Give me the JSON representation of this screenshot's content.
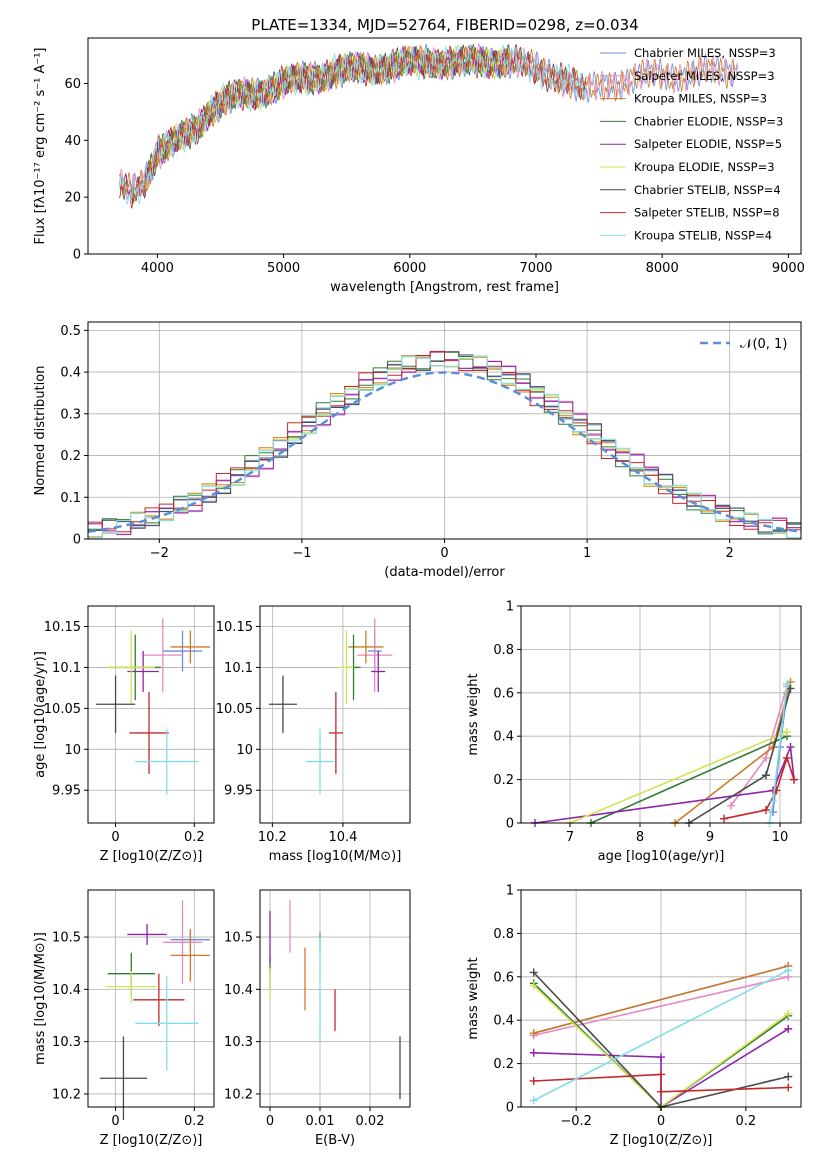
{
  "title": "PLATE=1334, MJD=52764, FIBERID=0298, z=0.034",
  "colors": [
    "#6b8ed6",
    "#e68ac0",
    "#cc7a29",
    "#2e7d32",
    "#8e24aa",
    "#d4e157",
    "#4a4a4a",
    "#c62828",
    "#80deea"
  ],
  "chart_data": [
    {
      "id": "spectrum",
      "type": "line",
      "xlabel": "wavelength [Angstrom, rest frame]",
      "ylabel": "Flux [fλ10⁻¹⁷ erg cm⁻² s⁻¹ A⁻¹]",
      "xlim": [
        3450,
        9100
      ],
      "ylim": [
        0,
        76
      ],
      "xticks": [
        4000,
        5000,
        6000,
        7000,
        8000,
        9000
      ],
      "yticks": [
        0,
        20,
        40,
        60
      ],
      "continuum": {
        "x": [
          3700,
          3800,
          3900,
          4000,
          4100,
          4200,
          4300,
          4400,
          4500,
          4600,
          4800,
          5000,
          5200,
          5400,
          5600,
          5800,
          6000,
          6200,
          6400,
          6600,
          6800,
          7000,
          7200,
          7400,
          7600,
          7800,
          8000,
          8200,
          8400,
          8600
        ],
        "y": [
          24,
          22,
          26,
          36,
          38,
          41,
          44,
          50,
          53,
          55,
          57,
          60,
          62,
          64,
          65,
          66,
          67,
          68,
          67,
          68,
          68,
          65,
          62,
          57,
          60,
          62,
          63,
          63,
          64,
          65
        ]
      },
      "series_labels": [
        "Chabrier MILES, N_SSP=3",
        "Salpeter MILES, N_SSP=3",
        "Kroupa MILES, N_SSP=3",
        "Chabrier ELODIE, N_SSP=3",
        "Salpeter ELODIE, N_SSP=5",
        "Kroupa ELODIE, N_SSP=3",
        "Chabrier STELIB, N_SSP=4",
        "Salpeter STELIB, N_SSP=8",
        "Kroupa STELIB, N_SSP=4"
      ],
      "series_range": [
        [
          3700,
          8600
        ],
        [
          3700,
          8600
        ],
        [
          3700,
          8600
        ],
        [
          3900,
          6800
        ],
        [
          3900,
          6800
        ],
        [
          3900,
          6800
        ],
        [
          3700,
          7400
        ],
        [
          3700,
          7400
        ],
        [
          3700,
          7400
        ]
      ]
    },
    {
      "id": "residuals",
      "type": "line",
      "xlabel": "(data-model)/error",
      "ylabel": "Normed distribution",
      "xlim": [
        -2.5,
        2.5
      ],
      "ylim": [
        0,
        0.52
      ],
      "xticks": [
        -2,
        -1,
        0,
        1,
        2
      ],
      "yticks": [
        0.0,
        0.1,
        0.2,
        0.3,
        0.4,
        0.5
      ],
      "legend": "𝒩(0, 1)",
      "legend_position": "top-right",
      "bin_width": 0.1,
      "bins_start": -2.5,
      "series_offsets": [
        0.02,
        0.05,
        -0.02,
        -0.03,
        0.04,
        0.0,
        0.03,
        -0.04,
        0.01
      ]
    },
    {
      "id": "age-vs-Z",
      "type": "scatter",
      "xlabel": "Z [log10(Z/Z⊙)]",
      "ylabel": "age  [log10(age/yr)]",
      "xlim": [
        -0.07,
        0.25
      ],
      "ylim": [
        9.91,
        10.175
      ],
      "xticks": [
        0.0,
        0.2
      ],
      "yticks": [
        9.95,
        10.0,
        10.05,
        10.1,
        10.15
      ],
      "points": [
        {
          "x": 0.17,
          "y": 10.12,
          "dx": 0.05,
          "dy": 0.025
        },
        {
          "x": 0.12,
          "y": 10.115,
          "dx": 0.05,
          "dy": 0.045
        },
        {
          "x": 0.19,
          "y": 10.125,
          "dx": 0.05,
          "dy": 0.02
        },
        {
          "x": 0.05,
          "y": 10.1,
          "dx": 0.065,
          "dy": 0.04
        },
        {
          "x": 0.07,
          "y": 10.095,
          "dx": 0.04,
          "dy": 0.025
        },
        {
          "x": 0.04,
          "y": 10.1,
          "dx": 0.06,
          "dy": 0.045
        },
        {
          "x": 0.0,
          "y": 10.055,
          "dx": 0.05,
          "dy": 0.035
        },
        {
          "x": 0.085,
          "y": 10.02,
          "dx": 0.05,
          "dy": 0.05
        },
        {
          "x": 0.13,
          "y": 9.985,
          "dx": 0.08,
          "dy": 0.04
        }
      ]
    },
    {
      "id": "age-vs-mass",
      "type": "scatter",
      "xlabel": "mass [log10(M/M⊙)]",
      "ylabel": "",
      "xlim": [
        10.165,
        10.59
      ],
      "ylim": [
        9.91,
        10.175
      ],
      "xticks": [
        10.2,
        10.4
      ],
      "yticks": [
        9.95,
        10.0,
        10.05,
        10.1,
        10.15
      ],
      "points": [
        {
          "x": 10.49,
          "y": 10.12,
          "dx": 0.02,
          "dy": 0.025
        },
        {
          "x": 10.49,
          "y": 10.115,
          "dx": 0.05,
          "dy": 0.045
        },
        {
          "x": 10.465,
          "y": 10.125,
          "dx": 0.05,
          "dy": 0.02
        },
        {
          "x": 10.43,
          "y": 10.1,
          "dx": 0.02,
          "dy": 0.04
        },
        {
          "x": 10.5,
          "y": 10.095,
          "dx": 0.02,
          "dy": 0.025
        },
        {
          "x": 10.41,
          "y": 10.1,
          "dx": 0.02,
          "dy": 0.045
        },
        {
          "x": 10.23,
          "y": 10.055,
          "dx": 0.04,
          "dy": 0.035
        },
        {
          "x": 10.38,
          "y": 10.02,
          "dx": 0.02,
          "dy": 0.05
        },
        {
          "x": 10.335,
          "y": 9.985,
          "dx": 0.04,
          "dy": 0.04
        }
      ]
    },
    {
      "id": "mass-weight-vs-age",
      "type": "line",
      "xlabel": "age  [log10(age/yr)]",
      "ylabel": "mass weight",
      "xlim": [
        6.3,
        10.3
      ],
      "ylim": [
        0.0,
        1.0
      ],
      "xticks": [
        7,
        8,
        9,
        10
      ],
      "yticks": [
        0.0,
        0.2,
        0.4,
        0.6,
        0.8,
        1.0
      ],
      "series": [
        {
          "x": [
            9.9,
            10.0,
            10.1
          ],
          "y": [
            0.05,
            0.35,
            0.6
          ]
        },
        {
          "x": [
            9.3,
            9.8,
            10.1
          ],
          "y": [
            0.08,
            0.3,
            0.63
          ]
        },
        {
          "x": [
            8.5,
            9.9,
            10.15
          ],
          "y": [
            0.0,
            0.35,
            0.65
          ]
        },
        {
          "x": [
            7.3,
            10.1
          ],
          "y": [
            0.0,
            0.4
          ]
        },
        {
          "x": [
            6.5,
            9.9,
            10.15,
            10.2
          ],
          "y": [
            0.0,
            0.15,
            0.35,
            0.2
          ]
        },
        {
          "x": [
            7.0,
            10.1
          ],
          "y": [
            0.0,
            0.42
          ]
        },
        {
          "x": [
            8.7,
            9.8,
            10.15
          ],
          "y": [
            0.0,
            0.22,
            0.62
          ]
        },
        {
          "x": [
            9.2,
            9.8,
            9.95,
            10.1,
            10.2
          ],
          "y": [
            0.02,
            0.06,
            0.15,
            0.3,
            0.2
          ]
        },
        {
          "x": [
            9.85,
            9.9,
            10.1
          ],
          "y": [
            0.0,
            0.1,
            0.64
          ]
        }
      ]
    },
    {
      "id": "mass-vs-Z",
      "type": "scatter",
      "xlabel": "Z [log10(Z/Z⊙)]",
      "ylabel": "mass [log10(M/M⊙)]",
      "xlim": [
        -0.07,
        0.25
      ],
      "ylim": [
        10.175,
        10.59
      ],
      "xticks": [
        0.0,
        0.2
      ],
      "yticks": [
        10.2,
        10.3,
        10.4,
        10.5
      ],
      "points": [
        {
          "x": 0.19,
          "y": 10.495,
          "dx": 0.05,
          "dy": 0.02
        },
        {
          "x": 0.17,
          "y": 10.49,
          "dx": 0.05,
          "dy": 0.08
        },
        {
          "x": 0.19,
          "y": 10.465,
          "dx": 0.05,
          "dy": 0.05
        },
        {
          "x": 0.04,
          "y": 10.43,
          "dx": 0.06,
          "dy": 0.04
        },
        {
          "x": 0.08,
          "y": 10.505,
          "dx": 0.05,
          "dy": 0.02
        },
        {
          "x": 0.04,
          "y": 10.405,
          "dx": 0.065,
          "dy": 0.03
        },
        {
          "x": 0.02,
          "y": 10.23,
          "dx": 0.06,
          "dy": 0.08
        },
        {
          "x": 0.11,
          "y": 10.38,
          "dx": 0.065,
          "dy": 0.05
        },
        {
          "x": 0.13,
          "y": 10.335,
          "dx": 0.08,
          "dy": 0.09
        }
      ]
    },
    {
      "id": "mass-vs-EBV",
      "type": "scatter",
      "xlabel": "E(B-V)",
      "ylabel": "",
      "xlim": [
        -0.002,
        0.028
      ],
      "ylim": [
        10.175,
        10.59
      ],
      "xticks": [
        0.0,
        0.01,
        0.02
      ],
      "yticks": [
        10.2,
        10.3,
        10.4,
        10.5
      ],
      "points": [
        {
          "x": 0.01,
          "y": 10.49,
          "dx": 0,
          "dy": 0.02
        },
        {
          "x": 0.004,
          "y": 10.52,
          "dx": 0,
          "dy": 0.05
        },
        {
          "x": 0.007,
          "y": 10.42,
          "dx": 0,
          "dy": 0.06
        },
        {
          "x": 0.0,
          "y": 10.43,
          "dx": 0,
          "dy": 0.03
        },
        {
          "x": 0.0,
          "y": 10.5,
          "dx": 0,
          "dy": 0.05
        },
        {
          "x": 0.0,
          "y": 10.41,
          "dx": 0,
          "dy": 0.03
        },
        {
          "x": 0.026,
          "y": 10.25,
          "dx": 0,
          "dy": 0.06
        },
        {
          "x": 0.013,
          "y": 10.36,
          "dx": 0,
          "dy": 0.04
        },
        {
          "x": 0.01,
          "y": 10.4,
          "dx": 0,
          "dy": 0.1
        }
      ]
    },
    {
      "id": "mass-weight-vs-Z",
      "type": "line",
      "xlabel": "Z [log10(Z/Z⊙)]",
      "ylabel": "mass weight",
      "xlim": [
        -0.33,
        0.33
      ],
      "ylim": [
        0.0,
        1.0
      ],
      "xticks": [
        -0.2,
        0.0,
        0.2
      ],
      "yticks": [
        0.0,
        0.2,
        0.4,
        0.6,
        0.8,
        1.0
      ],
      "series": [
        {
          "x": [
            -0.3,
            0.3
          ],
          "y": [
            0.34,
            0.65
          ]
        },
        {
          "x": [
            -0.3,
            0.3
          ],
          "y": [
            0.33,
            0.6
          ]
        },
        {
          "x": [
            -0.3,
            0.3
          ],
          "y": [
            0.34,
            0.65
          ]
        },
        {
          "x": [
            -0.3,
            0.0,
            0.3
          ],
          "y": [
            0.57,
            0.0,
            0.42
          ]
        },
        {
          "x": [
            -0.3,
            0.0,
            0.0,
            0.3
          ],
          "y": [
            0.25,
            0.23,
            0.0,
            0.36
          ]
        },
        {
          "x": [
            -0.3,
            0.0,
            0.3
          ],
          "y": [
            0.56,
            0.0,
            0.43
          ]
        },
        {
          "x": [
            -0.3,
            0.0,
            0.3
          ],
          "y": [
            0.62,
            0.0,
            0.14
          ]
        },
        {
          "x": [
            -0.3,
            0.0,
            0.0,
            0.3
          ],
          "y": [
            0.12,
            0.15,
            0.07,
            0.09
          ]
        },
        {
          "x": [
            -0.3,
            0.3
          ],
          "y": [
            0.03,
            0.63
          ]
        }
      ]
    }
  ]
}
